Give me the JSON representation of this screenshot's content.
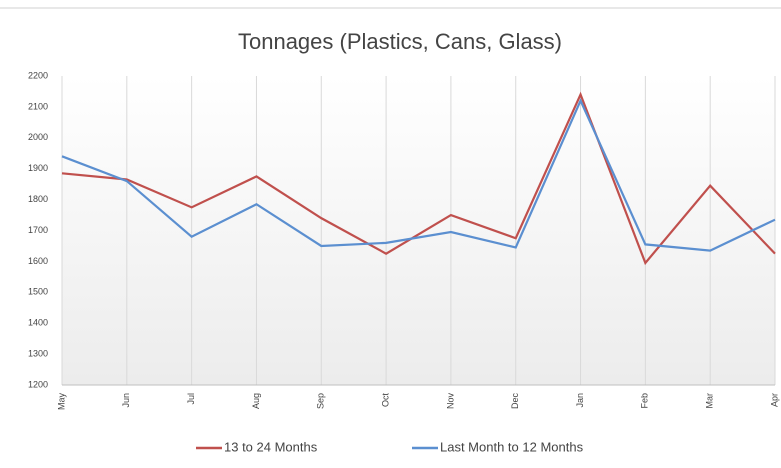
{
  "chart_data": {
    "type": "line",
    "title": "Tonnages (Plastics, Cans, Glass)",
    "categories": [
      "May",
      "Jun",
      "Jul",
      "Aug",
      "Sep",
      "Oct",
      "Nov",
      "Dec",
      "Jan",
      "Feb",
      "Mar",
      "Apr"
    ],
    "series": [
      {
        "name": "13 to 24 Months",
        "color": "#c0504d",
        "values": [
          1885,
          1865,
          1775,
          1875,
          1740,
          1625,
          1750,
          1675,
          2140,
          1595,
          1845,
          1625
        ]
      },
      {
        "name": "Last Month to 12 Months",
        "color": "#5b8fd0",
        "values": [
          1940,
          1860,
          1680,
          1785,
          1650,
          1660,
          1695,
          1645,
          2120,
          1655,
          1635,
          1735
        ]
      }
    ],
    "ylim": [
      1200,
      2200
    ],
    "yticks": [
      1200,
      1300,
      1400,
      1500,
      1600,
      1700,
      1800,
      1900,
      2000,
      2100,
      2200
    ],
    "grid": "x",
    "legend": "bottom"
  }
}
